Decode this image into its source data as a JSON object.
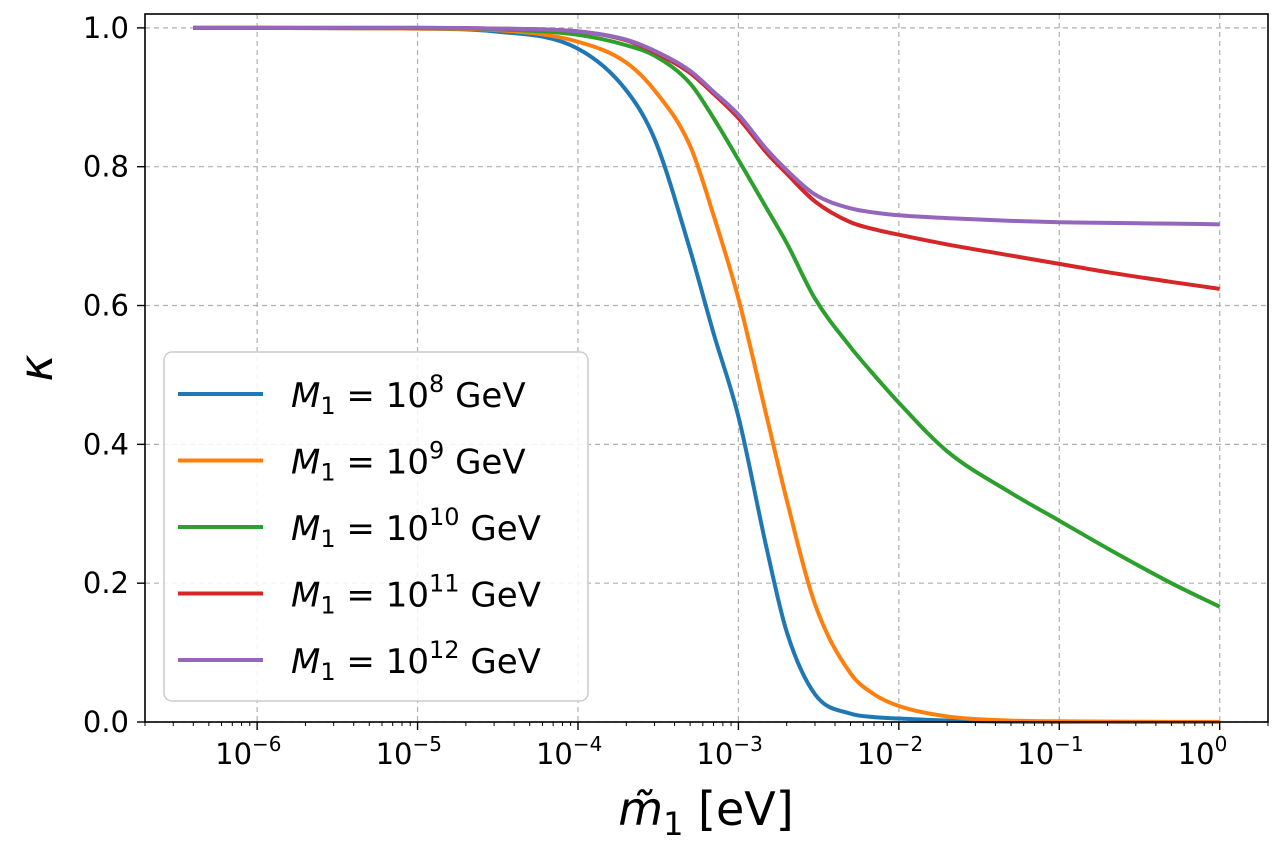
{
  "chart_data": {
    "type": "line",
    "title": "",
    "xlabel_main": "m̃",
    "xlabel_sub": "1",
    "xlabel_unit": "[eV]",
    "ylabel": "κ",
    "xscale": "log",
    "xlim": [
      2e-07,
      2.0
    ],
    "ylim": [
      0.0,
      1.02
    ],
    "grid": true,
    "legend_position": "center-left",
    "x_ticks": [
      {
        "value": 1e-06,
        "base": "10",
        "exp": "−6"
      },
      {
        "value": 1e-05,
        "base": "10",
        "exp": "−5"
      },
      {
        "value": 0.0001,
        "base": "10",
        "exp": "−4"
      },
      {
        "value": 0.001,
        "base": "10",
        "exp": "−3"
      },
      {
        "value": 0.01,
        "base": "10",
        "exp": "−2"
      },
      {
        "value": 0.1,
        "base": "10",
        "exp": "−1"
      },
      {
        "value": 1.0,
        "base": "10",
        "exp": "0"
      }
    ],
    "y_ticks": [
      {
        "value": 0.0,
        "label": "0.0"
      },
      {
        "value": 0.2,
        "label": "0.2"
      },
      {
        "value": 0.4,
        "label": "0.4"
      },
      {
        "value": 0.6,
        "label": "0.6"
      },
      {
        "value": 0.8,
        "label": "0.8"
      },
      {
        "value": 1.0,
        "label": "1.0"
      }
    ],
    "x": [
      4e-07,
      1e-06,
      1e-05,
      3e-05,
      0.0001,
      0.0002,
      0.0003,
      0.0005,
      0.0007,
      0.001,
      0.0015,
      0.002,
      0.003,
      0.005,
      0.007,
      0.01,
      0.02,
      0.05,
      0.1,
      0.2,
      0.5,
      1.0
    ],
    "series": [
      {
        "name": "M1 = 10^8 GeV",
        "label_sym": "M",
        "label_sub": "1",
        "label_mid": " = 10",
        "label_exp": "8",
        "label_unit": " GeV",
        "color": "#1f77b4",
        "values": [
          1.0,
          1.0,
          0.999,
          0.995,
          0.97,
          0.91,
          0.84,
          0.68,
          0.56,
          0.44,
          0.25,
          0.13,
          0.04,
          0.012,
          0.007,
          0.005,
          0.002,
          0.0005,
          0.0002,
          0.0001,
          0.0,
          0.0
        ]
      },
      {
        "name": "M1 = 10^9 GeV",
        "label_sym": "M",
        "label_sub": "1",
        "label_mid": " = 10",
        "label_exp": "9",
        "label_unit": " GeV",
        "color": "#ff7f0e",
        "values": [
          1.0,
          1.0,
          0.999,
          0.997,
          0.98,
          0.95,
          0.91,
          0.83,
          0.73,
          0.61,
          0.44,
          0.32,
          0.17,
          0.07,
          0.04,
          0.023,
          0.008,
          0.002,
          0.001,
          0.0005,
          0.0002,
          0.0001
        ]
      },
      {
        "name": "M1 = 10^10 GeV",
        "label_sym": "M",
        "label_sub": "1",
        "label_mid": " = 10",
        "label_exp": "10",
        "label_unit": " GeV",
        "color": "#2ca02c",
        "values": [
          1.0,
          1.0,
          1.0,
          0.998,
          0.99,
          0.975,
          0.96,
          0.92,
          0.87,
          0.81,
          0.74,
          0.69,
          0.61,
          0.54,
          0.5,
          0.46,
          0.39,
          0.33,
          0.29,
          0.25,
          0.2,
          0.166
        ]
      },
      {
        "name": "M1 = 10^11 GeV",
        "label_sym": "M",
        "label_sub": "1",
        "label_mid": " = 10",
        "label_exp": "11",
        "label_unit": " GeV",
        "color": "#d62728",
        "values": [
          1.0,
          1.0,
          1.0,
          0.999,
          0.995,
          0.982,
          0.965,
          0.935,
          0.905,
          0.87,
          0.82,
          0.79,
          0.75,
          0.72,
          0.71,
          0.702,
          0.688,
          0.672,
          0.66,
          0.648,
          0.634,
          0.624
        ]
      },
      {
        "name": "M1 = 10^12 GeV",
        "label_sym": "M",
        "label_sub": "1",
        "label_mid": " = 10",
        "label_exp": "12",
        "label_unit": " GeV",
        "color": "#9467bd",
        "values": [
          1.0,
          1.0,
          1.0,
          0.999,
          0.995,
          0.983,
          0.967,
          0.938,
          0.908,
          0.875,
          0.825,
          0.795,
          0.76,
          0.74,
          0.734,
          0.73,
          0.726,
          0.722,
          0.72,
          0.719,
          0.718,
          0.717
        ]
      }
    ]
  }
}
